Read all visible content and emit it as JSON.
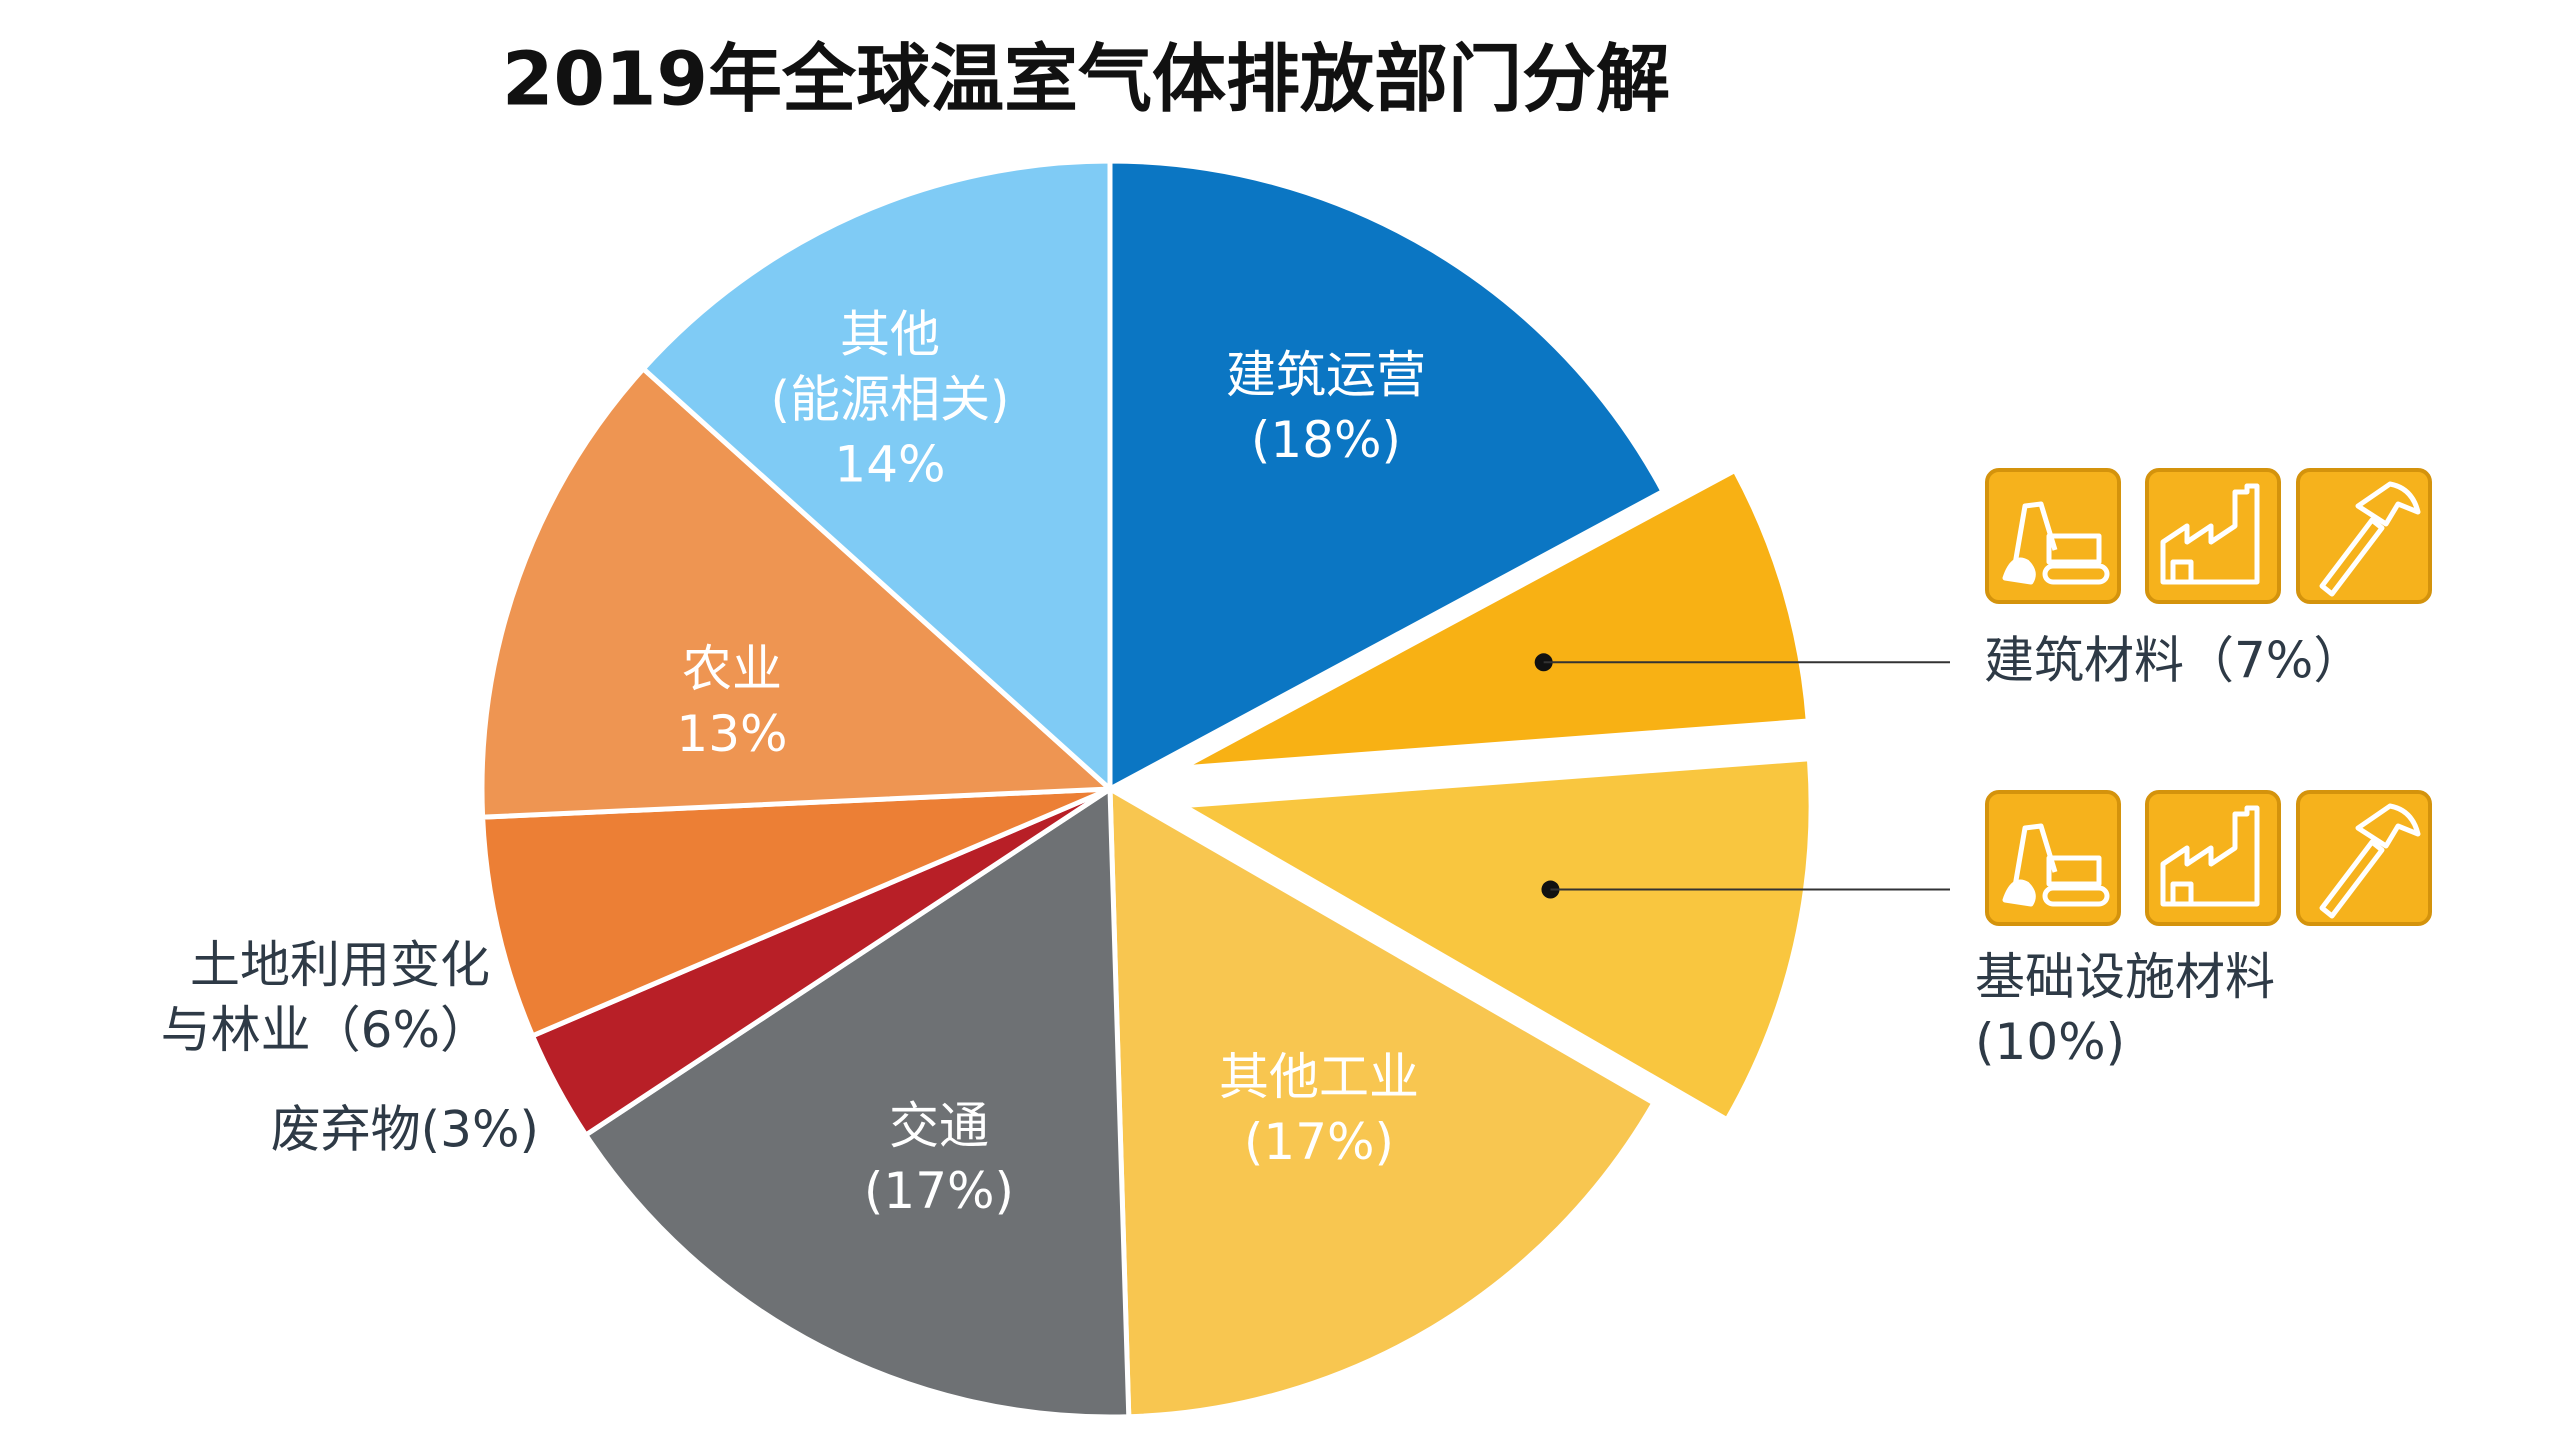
{
  "chart_data": {
    "type": "pie",
    "title": "2019年全球温室气体排放部门分解",
    "categories": [
      "建筑运营",
      "建筑材料",
      "基础设施材料",
      "其他工业",
      "交通",
      "废弃物",
      "土地利用变化\n与林业",
      "农业",
      "其他\n(能源相关)"
    ],
    "values": [
      18,
      7,
      10,
      17,
      17,
      3,
      6,
      13,
      14
    ],
    "value_labels": [
      "(18%)",
      "（7%）",
      "(10%)",
      "(17%)",
      "(17%)",
      "(3%)",
      "（6%）",
      "13%",
      "14%"
    ],
    "colors": [
      "#0b76c3",
      "#f8b114",
      "#f9c63f",
      "#f8c650",
      "#6e7174",
      "#b81f27",
      "#ec7f35",
      "#ee9552",
      "#7fcbf5"
    ],
    "explode": [
      false,
      true,
      true,
      false,
      false,
      false,
      false,
      false,
      false
    ]
  }
}
